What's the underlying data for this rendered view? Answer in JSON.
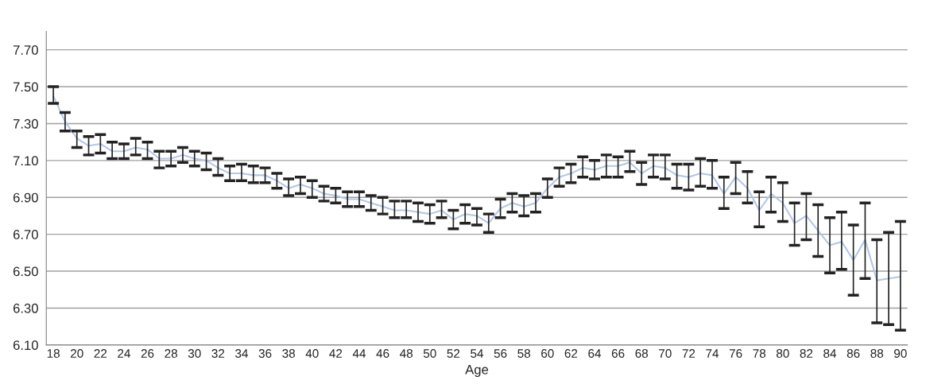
{
  "chart_data": {
    "type": "line",
    "xlabel": "Age",
    "categories": [
      "18",
      null,
      "20",
      null,
      "22",
      null,
      "24",
      null,
      "26",
      null,
      "28",
      null,
      "30",
      null,
      "32",
      null,
      "34",
      null,
      "36",
      null,
      "38",
      null,
      "40",
      null,
      "42",
      null,
      "44",
      null,
      "46",
      null,
      "48",
      null,
      "50",
      null,
      "52",
      null,
      "54",
      null,
      "56",
      null,
      "58",
      null,
      "60",
      null,
      "62",
      null,
      "64",
      null,
      "66",
      null,
      "68",
      null,
      "70",
      null,
      "72",
      null,
      "74",
      null,
      "76",
      null,
      "78",
      null,
      "80",
      null,
      "82",
      null,
      "84",
      null,
      "86",
      null,
      "88",
      null,
      "90"
    ],
    "series": [
      {
        "color": "#b4c7e7",
        "values": [
          7.45,
          7.31,
          7.22,
          7.18,
          7.19,
          7.15,
          7.15,
          7.17,
          7.16,
          7.11,
          7.11,
          7.13,
          7.11,
          7.1,
          7.06,
          7.03,
          7.03,
          7.02,
          7.02,
          6.99,
          6.95,
          6.97,
          6.95,
          6.92,
          6.91,
          6.89,
          6.89,
          6.87,
          6.85,
          6.83,
          6.83,
          6.82,
          6.81,
          6.83,
          6.78,
          6.81,
          6.8,
          6.76,
          6.84,
          6.87,
          6.85,
          6.87,
          6.95,
          7.01,
          7.03,
          7.06,
          7.05,
          7.07,
          7.07,
          7.09,
          7.03,
          7.07,
          7.06,
          7.02,
          7.01,
          7.03,
          7.02,
          6.92,
          7.01,
          6.95,
          6.83,
          6.92,
          6.87,
          6.76,
          6.8,
          6.72,
          6.64,
          6.66,
          6.56,
          6.67,
          6.45,
          6.46,
          6.47
        ],
        "errors": [
          [
            7.41,
            7.5
          ],
          [
            7.26,
            7.36
          ],
          [
            7.17,
            7.26
          ],
          [
            7.13,
            7.23
          ],
          [
            7.14,
            7.24
          ],
          [
            7.11,
            7.2
          ],
          [
            7.11,
            7.19
          ],
          [
            7.13,
            7.22
          ],
          [
            7.11,
            7.2
          ],
          [
            7.06,
            7.15
          ],
          [
            7.07,
            7.15
          ],
          [
            7.09,
            7.17
          ],
          [
            7.07,
            7.15
          ],
          [
            7.05,
            7.14
          ],
          [
            7.02,
            7.11
          ],
          [
            6.99,
            7.07
          ],
          [
            6.99,
            7.08
          ],
          [
            6.98,
            7.07
          ],
          [
            6.98,
            7.06
          ],
          [
            6.95,
            7.03
          ],
          [
            6.91,
            7.0
          ],
          [
            6.92,
            7.01
          ],
          [
            6.9,
            6.99
          ],
          [
            6.88,
            6.96
          ],
          [
            6.87,
            6.95
          ],
          [
            6.85,
            6.93
          ],
          [
            6.85,
            6.93
          ],
          [
            6.83,
            6.91
          ],
          [
            6.81,
            6.9
          ],
          [
            6.79,
            6.88
          ],
          [
            6.79,
            6.88
          ],
          [
            6.77,
            6.87
          ],
          [
            6.76,
            6.86
          ],
          [
            6.79,
            6.88
          ],
          [
            6.73,
            6.83
          ],
          [
            6.76,
            6.86
          ],
          [
            6.75,
            6.84
          ],
          [
            6.71,
            6.81
          ],
          [
            6.79,
            6.89
          ],
          [
            6.82,
            6.92
          ],
          [
            6.8,
            6.91
          ],
          [
            6.82,
            6.92
          ],
          [
            6.9,
            7.0
          ],
          [
            6.96,
            7.06
          ],
          [
            6.98,
            7.08
          ],
          [
            7.01,
            7.12
          ],
          [
            7.0,
            7.1
          ],
          [
            7.01,
            7.13
          ],
          [
            7.01,
            7.12
          ],
          [
            7.04,
            7.15
          ],
          [
            6.97,
            7.09
          ],
          [
            7.01,
            7.13
          ],
          [
            7.0,
            7.13
          ],
          [
            6.95,
            7.08
          ],
          [
            6.94,
            7.08
          ],
          [
            6.96,
            7.11
          ],
          [
            6.95,
            7.1
          ],
          [
            6.84,
            7.01
          ],
          [
            6.92,
            7.09
          ],
          [
            6.87,
            7.04
          ],
          [
            6.74,
            6.93
          ],
          [
            6.82,
            7.01
          ],
          [
            6.77,
            6.98
          ],
          [
            6.64,
            6.87
          ],
          [
            6.67,
            6.92
          ],
          [
            6.58,
            6.86
          ],
          [
            6.49,
            6.79
          ],
          [
            6.51,
            6.82
          ],
          [
            6.37,
            6.75
          ],
          [
            6.46,
            6.87
          ],
          [
            6.22,
            6.67
          ],
          [
            6.21,
            6.71
          ],
          [
            6.18,
            6.77
          ]
        ]
      }
    ],
    "ylim": [
      6.1,
      7.8
    ],
    "yticks": [
      {
        "value": 6.1,
        "label": "6.10"
      },
      {
        "value": 6.3,
        "label": "6.30"
      },
      {
        "value": 6.5,
        "label": "6.50"
      },
      {
        "value": 6.7,
        "label": "6.70"
      },
      {
        "value": 6.9,
        "label": "6.90"
      },
      {
        "value": 7.1,
        "label": "7.10"
      },
      {
        "value": 7.3,
        "label": "7.30"
      },
      {
        "value": 7.5,
        "label": "7.50"
      },
      {
        "value": 7.7,
        "label": "7.70"
      }
    ],
    "grid": "y",
    "marker": "none",
    "line_style": "solid"
  }
}
